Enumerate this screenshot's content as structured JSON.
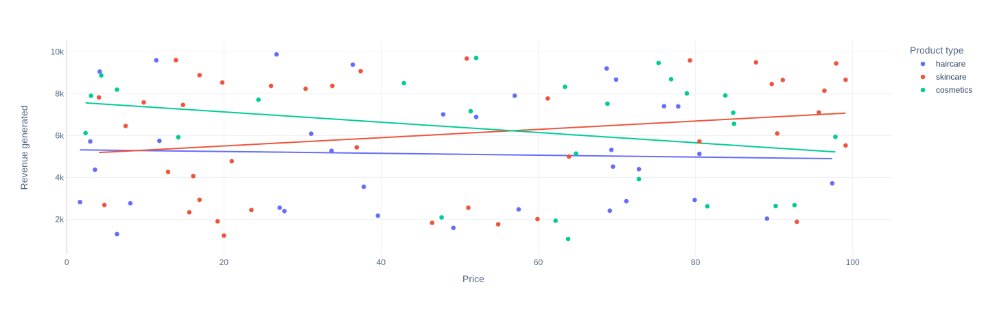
{
  "chart_data": {
    "type": "scatter",
    "title": "",
    "xlabel": "Price",
    "ylabel": "Revenue generated",
    "xlim": [
      -1.5,
      105
    ],
    "ylim": [
      350,
      10500
    ],
    "x_ticks": [
      0,
      20,
      40,
      60,
      80,
      100
    ],
    "y_ticks": [
      2000,
      4000,
      6000,
      8000,
      10000
    ],
    "y_tick_labels": [
      "2k",
      "4k",
      "6k",
      "8k",
      "10k"
    ],
    "grid": true,
    "legend_title": "Product type",
    "legend_position": "top-right",
    "series": [
      {
        "name": "haircare",
        "color": "#636efa",
        "points": [
          [
            1.7,
            2830
          ],
          [
            3.0,
            5720
          ],
          [
            3.6,
            4370
          ],
          [
            4.2,
            9050
          ],
          [
            6.4,
            1300
          ],
          [
            8.1,
            2770
          ],
          [
            11.4,
            9590
          ],
          [
            11.8,
            5750
          ],
          [
            26.7,
            9870
          ],
          [
            27.1,
            2560
          ],
          [
            27.7,
            2400
          ],
          [
            31.1,
            6090
          ],
          [
            33.7,
            5270
          ],
          [
            36.4,
            9380
          ],
          [
            37.8,
            3560
          ],
          [
            39.6,
            2180
          ],
          [
            47.9,
            7010
          ],
          [
            49.2,
            1600
          ],
          [
            52.1,
            6890
          ],
          [
            57.0,
            7900
          ],
          [
            57.5,
            2480
          ],
          [
            68.7,
            9200
          ],
          [
            69.1,
            2420
          ],
          [
            69.3,
            5320
          ],
          [
            69.5,
            4520
          ],
          [
            69.9,
            8670
          ],
          [
            71.2,
            2870
          ],
          [
            72.8,
            4400
          ],
          [
            76.0,
            7400
          ],
          [
            77.8,
            7390
          ],
          [
            79.9,
            2930
          ],
          [
            80.5,
            5130
          ],
          [
            89.1,
            2040
          ],
          [
            97.4,
            3720
          ]
        ],
        "trend": [
          [
            1.7,
            5320
          ],
          [
            97.4,
            4900
          ]
        ]
      },
      {
        "name": "skincare",
        "color": "#ef553b",
        "points": [
          [
            4.1,
            7820
          ],
          [
            4.8,
            2690
          ],
          [
            7.5,
            6460
          ],
          [
            9.8,
            7580
          ],
          [
            12.9,
            4270
          ],
          [
            13.9,
            9600
          ],
          [
            14.8,
            7460
          ],
          [
            15.6,
            2340
          ],
          [
            16.1,
            4070
          ],
          [
            16.9,
            2940
          ],
          [
            16.9,
            8880
          ],
          [
            19.2,
            1910
          ],
          [
            19.8,
            8530
          ],
          [
            20.0,
            1230
          ],
          [
            21.0,
            4780
          ],
          [
            23.5,
            2450
          ],
          [
            26.0,
            8370
          ],
          [
            30.4,
            8230
          ],
          [
            33.8,
            8370
          ],
          [
            36.9,
            5440
          ],
          [
            37.4,
            9070
          ],
          [
            46.5,
            1840
          ],
          [
            50.9,
            9670
          ],
          [
            51.1,
            2560
          ],
          [
            54.9,
            1770
          ],
          [
            59.9,
            2020
          ],
          [
            61.2,
            7770
          ],
          [
            63.9,
            5000
          ],
          [
            79.3,
            9580
          ],
          [
            80.5,
            5720
          ],
          [
            87.7,
            9490
          ],
          [
            89.7,
            8460
          ],
          [
            90.4,
            6100
          ],
          [
            91.1,
            8650
          ],
          [
            92.9,
            1890
          ],
          [
            95.7,
            7100
          ],
          [
            96.4,
            8140
          ],
          [
            97.9,
            9440
          ],
          [
            99.1,
            8660
          ],
          [
            99.1,
            5530
          ]
        ],
        "trend": [
          [
            4.1,
            5190
          ],
          [
            99.1,
            7070
          ]
        ]
      },
      {
        "name": "cosmetics",
        "color": "#00cc96",
        "points": [
          [
            2.4,
            6120
          ],
          [
            3.1,
            7900
          ],
          [
            4.4,
            8870
          ],
          [
            6.4,
            8190
          ],
          [
            14.2,
            5920
          ],
          [
            24.4,
            7710
          ],
          [
            42.9,
            8500
          ],
          [
            47.7,
            2100
          ],
          [
            51.4,
            7160
          ],
          [
            52.1,
            9700
          ],
          [
            62.2,
            1940
          ],
          [
            63.4,
            8320
          ],
          [
            63.8,
            1070
          ],
          [
            64.8,
            5140
          ],
          [
            68.8,
            7520
          ],
          [
            72.8,
            3920
          ],
          [
            75.3,
            9460
          ],
          [
            76.9,
            8690
          ],
          [
            78.9,
            8010
          ],
          [
            81.5,
            2630
          ],
          [
            83.8,
            7910
          ],
          [
            84.8,
            7090
          ],
          [
            84.9,
            6560
          ],
          [
            90.2,
            2640
          ],
          [
            92.6,
            2680
          ],
          [
            97.8,
            5940
          ]
        ],
        "trend": [
          [
            2.4,
            7560
          ],
          [
            97.8,
            5220
          ]
        ]
      }
    ]
  }
}
